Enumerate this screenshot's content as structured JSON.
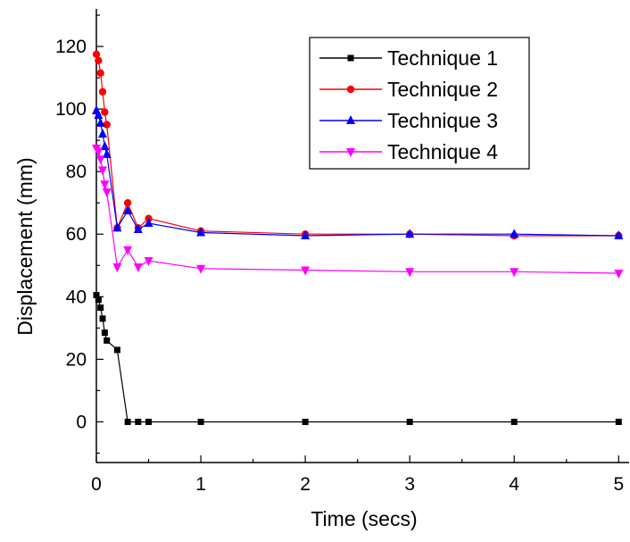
{
  "chart_data": {
    "type": "line",
    "title": "",
    "xlabel": "Time (secs)",
    "ylabel": "Displacement (mm)",
    "xlim": [
      0,
      5.1
    ],
    "ylim": [
      -13,
      132
    ],
    "xticks": [
      0,
      1,
      2,
      3,
      4,
      5
    ],
    "yticks": [
      0,
      20,
      40,
      60,
      80,
      100,
      120
    ],
    "grid": false,
    "legend_position": "top-right",
    "series": [
      {
        "name": "Technique 1",
        "color": "#000000",
        "marker": "square",
        "x": [
          0.0,
          0.02,
          0.04,
          0.06,
          0.08,
          0.1,
          0.2,
          0.3,
          0.4,
          0.5,
          1.0,
          2.0,
          3.0,
          4.0,
          5.0
        ],
        "y": [
          40.5,
          39.0,
          36.5,
          33.0,
          28.5,
          26.0,
          23.0,
          0,
          0,
          0,
          0,
          0,
          0,
          0,
          0
        ]
      },
      {
        "name": "Technique 2",
        "color": "#ff0000",
        "marker": "circle",
        "x": [
          0.0,
          0.02,
          0.04,
          0.06,
          0.08,
          0.1,
          0.2,
          0.3,
          0.4,
          0.5,
          1.0,
          2.0,
          3.0,
          4.0,
          5.0
        ],
        "y": [
          117.5,
          115.5,
          111.5,
          105.5,
          99.0,
          95.0,
          62.0,
          70.0,
          62.0,
          65.0,
          61.0,
          60.0,
          60.0,
          59.5,
          59.5
        ]
      },
      {
        "name": "Technique 3",
        "color": "#0000ff",
        "marker": "triangle-up",
        "x": [
          0.0,
          0.02,
          0.04,
          0.06,
          0.08,
          0.1,
          0.2,
          0.3,
          0.4,
          0.5,
          1.0,
          2.0,
          3.0,
          4.0,
          5.0
        ],
        "y": [
          99.5,
          98.0,
          95.5,
          92.0,
          88.0,
          85.5,
          62.0,
          67.5,
          61.5,
          63.5,
          60.5,
          59.5,
          60.0,
          60.0,
          59.5
        ]
      },
      {
        "name": "Technique 4",
        "color": "#ff00ff",
        "marker": "triangle-down",
        "x": [
          0.0,
          0.02,
          0.04,
          0.06,
          0.08,
          0.1,
          0.2,
          0.3,
          0.4,
          0.5,
          1.0,
          2.0,
          3.0,
          4.0,
          5.0
        ],
        "y": [
          87.5,
          86.5,
          84.0,
          80.5,
          76.0,
          73.5,
          49.5,
          55.0,
          49.5,
          51.5,
          49.0,
          48.5,
          48.0,
          48.0,
          47.5
        ]
      }
    ]
  }
}
